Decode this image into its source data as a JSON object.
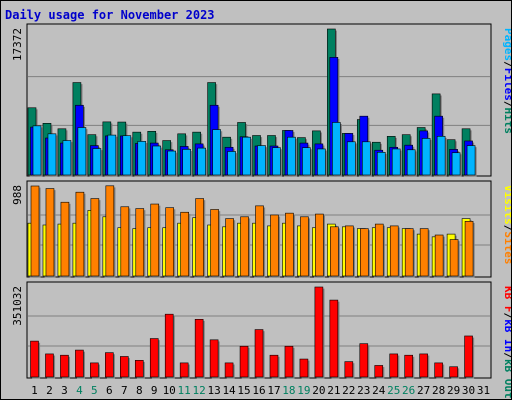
{
  "title": "Daily usage for November 2023",
  "colors": {
    "background": "#c0c0c0",
    "panel": "#c0c0c0",
    "title": "#0000cc",
    "pages": "#00b4ff",
    "files": "#0000ff",
    "hits": "#008060",
    "visits": "#ffff00",
    "sites": "#ff8000",
    "kbin": "#0000ff",
    "kbout": "#008060",
    "kbf": "#ff0000",
    "weekday_label": "#000000",
    "weekend_label": "#008060"
  },
  "chart_data": [
    {
      "type": "bar",
      "panel": "hits_files_pages",
      "ymax_label": "17372",
      "ylim": [
        0,
        17372
      ],
      "categories": [
        "1",
        "2",
        "3",
        "4",
        "5",
        "6",
        "7",
        "8",
        "9",
        "10",
        "11",
        "12",
        "13",
        "14",
        "15",
        "16",
        "17",
        "18",
        "19",
        "20",
        "21",
        "22",
        "23",
        "24",
        "25",
        "26",
        "27",
        "28",
        "29",
        "30",
        "31"
      ],
      "weekend_days": [
        "4",
        "5",
        "11",
        "12",
        "18",
        "19",
        "25",
        "26"
      ],
      "legend": [
        {
          "text": "Pages",
          "color": "#00b4ff"
        },
        {
          "text": "/",
          "color": "#000000"
        },
        {
          "text": "Files",
          "color": "#0000ff"
        },
        {
          "text": "/",
          "color": "#000000"
        },
        {
          "text": "Hits",
          "color": "#008060"
        }
      ],
      "series": [
        {
          "name": "Hits",
          "color": "#008060",
          "values": [
            8000,
            6150,
            5500,
            11000,
            4800,
            6320,
            6300,
            5100,
            5200,
            4100,
            4900,
            5100,
            11000,
            4500,
            6250,
            4700,
            4700,
            5300,
            4450,
            5250,
            17372,
            4950,
            6600,
            3900,
            4600,
            4800,
            5650,
            9650,
            4200,
            5500,
            0
          ]
        },
        {
          "name": "Files",
          "color": "#0000ff",
          "values": [
            5700,
            4400,
            3800,
            8300,
            3500,
            4650,
            4650,
            3750,
            3800,
            3000,
            3400,
            3700,
            8300,
            3300,
            4550,
            3450,
            3450,
            5300,
            3800,
            3700,
            14000,
            4950,
            7000,
            2950,
            3300,
            3550,
            5250,
            7000,
            3050,
            4050,
            0
          ]
        },
        {
          "name": "Pages",
          "color": "#00b4ff",
          "values": [
            5850,
            4900,
            4100,
            5650,
            3150,
            4750,
            4680,
            4000,
            3450,
            2850,
            3050,
            3200,
            5400,
            2800,
            4500,
            3500,
            3250,
            4500,
            3250,
            3100,
            6250,
            3950,
            3950,
            2700,
            3100,
            3000,
            4350,
            4600,
            2650,
            3500,
            0
          ]
        }
      ]
    },
    {
      "type": "bar",
      "panel": "visits_sites",
      "ymax_label": "988",
      "ylim": [
        0,
        988
      ],
      "categories": [
        "1",
        "2",
        "3",
        "4",
        "5",
        "6",
        "7",
        "8",
        "9",
        "10",
        "11",
        "12",
        "13",
        "14",
        "15",
        "16",
        "17",
        "18",
        "19",
        "20",
        "21",
        "22",
        "23",
        "24",
        "25",
        "26",
        "27",
        "28",
        "29",
        "30",
        "31"
      ],
      "legend": [
        {
          "text": "Visits",
          "color": "#ffff00"
        },
        {
          "text": "/",
          "color": "#000000"
        },
        {
          "text": "Sites",
          "color": "#ff8000"
        }
      ],
      "series": [
        {
          "name": "Visits",
          "color": "#ffff00",
          "values": [
            580,
            560,
            570,
            580,
            720,
            650,
            530,
            520,
            530,
            530,
            580,
            640,
            560,
            540,
            580,
            580,
            550,
            580,
            550,
            530,
            570,
            540,
            520,
            530,
            530,
            520,
            460,
            430,
            460,
            630,
            0
          ]
        },
        {
          "name": "Sites",
          "color": "#ff8000",
          "values": [
            988,
            960,
            810,
            920,
            850,
            990,
            760,
            740,
            790,
            750,
            700,
            850,
            730,
            630,
            650,
            770,
            670,
            690,
            650,
            680,
            540,
            550,
            520,
            570,
            550,
            520,
            520,
            450,
            400,
            600,
            0
          ]
        }
      ]
    },
    {
      "type": "bar",
      "panel": "kbytes",
      "ymax_label": "351032",
      "ylim": [
        0,
        351032
      ],
      "categories": [
        "1",
        "2",
        "3",
        "4",
        "5",
        "6",
        "7",
        "8",
        "9",
        "10",
        "11",
        "12",
        "13",
        "14",
        "15",
        "16",
        "17",
        "18",
        "19",
        "20",
        "21",
        "22",
        "23",
        "24",
        "25",
        "26",
        "27",
        "28",
        "29",
        "30",
        "31"
      ],
      "legend": [
        {
          "text": "KB F",
          "color": "#ff0000"
        },
        {
          "text": "/",
          "color": "#000000"
        },
        {
          "text": "kB In",
          "color": "#0000ff"
        },
        {
          "text": "/",
          "color": "#000000"
        },
        {
          "text": "kB Out",
          "color": "#008060"
        }
      ],
      "series": [
        {
          "name": "KB F",
          "color": "#ff0000",
          "values": [
            140000,
            90000,
            85000,
            105000,
            55000,
            95000,
            80000,
            65000,
            150000,
            245000,
            55000,
            225000,
            145000,
            55000,
            120000,
            185000,
            85000,
            120000,
            70000,
            351032,
            300000,
            60000,
            130000,
            45000,
            90000,
            85000,
            90000,
            55000,
            40000,
            160000,
            0
          ]
        }
      ]
    }
  ]
}
